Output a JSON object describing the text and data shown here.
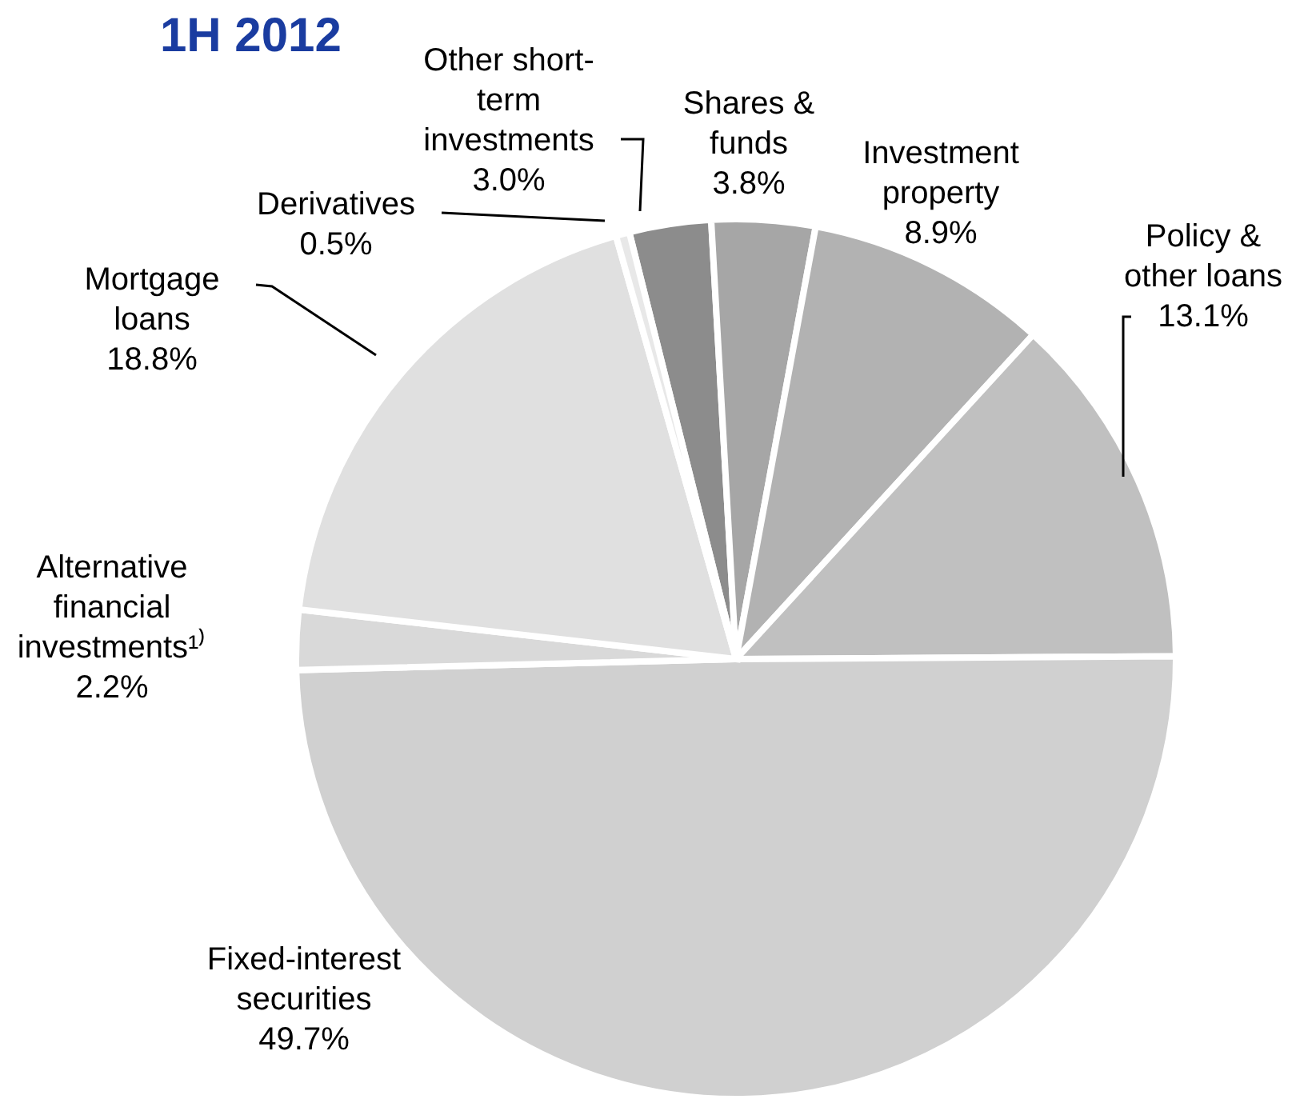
{
  "chart_data": {
    "type": "pie",
    "title": "1H 2012",
    "categories": [
      "Other short-term investments",
      "Shares & funds",
      "Investment property",
      "Policy & other loans",
      "Fixed-interest securities",
      "Alternative financial investments¹⁾",
      "Mortgage loans",
      "Derivatives"
    ],
    "values": [
      3.0,
      3.8,
      8.9,
      13.1,
      49.7,
      2.2,
      18.8,
      0.5
    ],
    "value_labels": [
      "3.0%",
      "3.8%",
      "8.9%",
      "13.1%",
      "49.7%",
      "2.2%",
      "18.8%",
      "0.5%"
    ],
    "colors": [
      "#8c8c8c",
      "#a6a6a6",
      "#b2b2b2",
      "#c0c0c0",
      "#d0d0d0",
      "#d9d9d9",
      "#e0e0e0",
      "#e8e8e8"
    ]
  }
}
